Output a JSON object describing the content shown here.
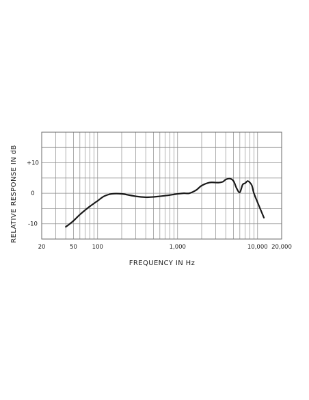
{
  "chart_data": {
    "type": "line",
    "title": "",
    "xlabel": "FREQUENCY IN Hz",
    "ylabel": "RELATIVE RESPONSE IN dB",
    "x_scale": "log",
    "xlim": [
      20,
      20000
    ],
    "ylim": [
      -15,
      20
    ],
    "grid": true,
    "x_ticks": [
      {
        "value": 20,
        "label": "20"
      },
      {
        "value": 50,
        "label": "50"
      },
      {
        "value": 100,
        "label": "100"
      },
      {
        "value": 1000,
        "label": "1,000"
      },
      {
        "value": 10000,
        "label": "10,000"
      },
      {
        "value": 20000,
        "label": "20,000"
      }
    ],
    "y_ticks": [
      {
        "value": 10,
        "label": "+10"
      },
      {
        "value": 0,
        "label": "0"
      },
      {
        "value": -10,
        "label": "-10"
      }
    ],
    "series": [
      {
        "x": [
          40,
          45,
          50,
          60,
          70,
          80,
          100,
          120,
          150,
          200,
          300,
          400,
          500,
          700,
          1000,
          1200,
          1400,
          1700,
          2000,
          2500,
          3000,
          3300,
          3700,
          4000,
          4500,
          5000,
          5500,
          6000,
          6500,
          7000,
          7500,
          8000,
          8500,
          9000,
          10000,
          12000
        ],
        "y": [
          -11,
          -10,
          -9,
          -7,
          -5.5,
          -4.3,
          -2.5,
          -1,
          -0.2,
          -0.2,
          -1,
          -1.3,
          -1.2,
          -0.8,
          -0.2,
          0,
          0,
          1,
          2.5,
          3.5,
          3.5,
          3.5,
          3.8,
          4.5,
          4.8,
          4,
          1.5,
          0.3,
          2.8,
          3.3,
          4,
          3.5,
          2.5,
          0,
          -3,
          -8
        ]
      }
    ]
  }
}
